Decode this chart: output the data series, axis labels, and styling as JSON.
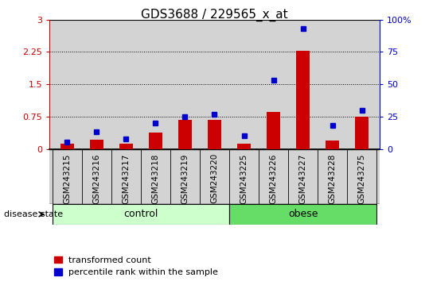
{
  "title": "GDS3688 / 229565_x_at",
  "samples": [
    "GSM243215",
    "GSM243216",
    "GSM243217",
    "GSM243218",
    "GSM243219",
    "GSM243220",
    "GSM243225",
    "GSM243226",
    "GSM243227",
    "GSM243228",
    "GSM243275"
  ],
  "transformed_count": [
    0.12,
    0.22,
    0.13,
    0.38,
    0.68,
    0.67,
    0.13,
    0.85,
    2.28,
    0.2,
    0.75
  ],
  "percentile_rank": [
    5.0,
    13.0,
    8.0,
    20.0,
    25.0,
    27.0,
    10.0,
    53.0,
    93.0,
    18.0,
    30.0
  ],
  "n_control": 6,
  "n_obese": 5,
  "bar_color": "#cc0000",
  "dot_color": "#0000cc",
  "control_color": "#ccffcc",
  "obese_color": "#66dd66",
  "background_color": "#d3d3d3",
  "left_axis_color": "#cc0000",
  "right_axis_color": "#0000cc",
  "ylim_left": [
    0,
    3.0
  ],
  "ylim_right": [
    0,
    100
  ],
  "yticks_left": [
    0,
    0.75,
    1.5,
    2.25,
    3.0
  ],
  "yticks_right": [
    0,
    25,
    50,
    75,
    100
  ],
  "ytick_labels_left": [
    "0",
    "0.75",
    "1.5",
    "2.25",
    "3"
  ],
  "ytick_labels_right": [
    "0",
    "25",
    "50",
    "75",
    "100%"
  ],
  "title_fontsize": 11,
  "tick_fontsize": 8,
  "sample_fontsize": 7.5,
  "disease_fontsize": 9,
  "legend_fontsize": 8
}
